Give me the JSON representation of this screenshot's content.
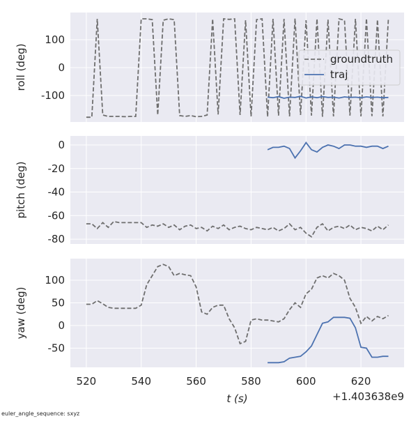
{
  "chart_data": [
    {
      "type": "line",
      "ylabel": "roll (deg)",
      "legend": "upper right",
      "xlim": [
        514.2,
        635.7
      ],
      "xticks": [
        520,
        540,
        560,
        580,
        600,
        620
      ],
      "ylim": [
        -195,
        197.5
      ],
      "yticks": [
        -100,
        0,
        100
      ],
      "grid": true,
      "series": [
        {
          "name": "groundtruth",
          "color": "#6e6e6e",
          "dashed": true,
          "x": [
            520,
            522,
            524,
            526,
            528,
            530,
            532,
            534,
            536,
            538,
            540,
            542,
            544,
            546,
            548,
            550,
            552,
            554,
            556,
            558,
            560,
            562,
            564,
            566,
            568,
            570,
            572,
            574,
            576,
            578,
            580,
            582,
            584,
            586,
            588,
            590,
            592,
            594,
            596,
            598,
            600,
            602,
            604,
            606,
            608,
            610,
            612,
            614,
            616,
            618,
            620,
            622,
            624,
            626,
            628,
            630
          ],
          "values": [
            -178,
            -178,
            175,
            -170,
            -175,
            -175,
            -175,
            -176,
            -175,
            -175,
            175,
            175,
            172,
            -170,
            170,
            175,
            172,
            -172,
            -175,
            -172,
            -176,
            -175,
            -170,
            175,
            -168,
            175,
            173,
            175,
            -170,
            170,
            -175,
            172,
            175,
            -176,
            175,
            -172,
            175,
            -175,
            176,
            -170,
            170,
            -172,
            175,
            -176,
            172,
            -175,
            175,
            170,
            -172,
            175,
            -175,
            176,
            -174,
            172,
            -175,
            175
          ]
        },
        {
          "name": "traj",
          "color": "#4c72b0",
          "dashed": false,
          "x": [
            586,
            588,
            590,
            592,
            594,
            596,
            598,
            600,
            602,
            604,
            606,
            608,
            610,
            612,
            614,
            616,
            618,
            620,
            622,
            624,
            626,
            628,
            630
          ],
          "values": [
            -106,
            -108,
            -104,
            -110,
            -106,
            -107,
            -103,
            -109,
            -105,
            -108,
            -104,
            -107,
            -106,
            -109,
            -105,
            -107,
            -106,
            -108,
            -105,
            -107,
            -106,
            -108,
            -107
          ]
        }
      ]
    },
    {
      "type": "line",
      "ylabel": "pitch (deg)",
      "xlim": [
        514.2,
        635.7
      ],
      "xticks": [
        520,
        540,
        560,
        580,
        600,
        620
      ],
      "ylim": [
        -84.1,
        7.7
      ],
      "yticks": [
        -80,
        -60,
        -40,
        -20,
        0
      ],
      "grid": true,
      "series": [
        {
          "color": "#6e6e6e",
          "dashed": true,
          "x": [
            520,
            522,
            524,
            526,
            528,
            530,
            532,
            534,
            536,
            538,
            540,
            542,
            544,
            546,
            548,
            550,
            552,
            554,
            556,
            558,
            560,
            562,
            564,
            566,
            568,
            570,
            572,
            574,
            576,
            578,
            580,
            582,
            584,
            586,
            588,
            590,
            592,
            594,
            596,
            598,
            600,
            602,
            604,
            606,
            608,
            610,
            612,
            614,
            616,
            618,
            620,
            622,
            624,
            626,
            628,
            630
          ],
          "values": [
            -67,
            -67,
            -71,
            -66,
            -70,
            -65,
            -66,
            -66,
            -66,
            -66,
            -66,
            -70,
            -68,
            -69,
            -67,
            -70,
            -68,
            -72,
            -69,
            -68,
            -71,
            -70,
            -73,
            -69,
            -71,
            -68,
            -72,
            -70,
            -69,
            -71,
            -72,
            -70,
            -71,
            -72,
            -70,
            -73,
            -71,
            -67,
            -72,
            -70,
            -75,
            -78,
            -70,
            -67,
            -73,
            -70,
            -69,
            -71,
            -68,
            -72,
            -70,
            -71,
            -73,
            -69,
            -72,
            -68
          ]
        },
        {
          "color": "#4c72b0",
          "dashed": false,
          "x": [
            586,
            588,
            590,
            592,
            594,
            596,
            598,
            600,
            602,
            604,
            606,
            608,
            610,
            612,
            614,
            616,
            618,
            620,
            622,
            624,
            626,
            628,
            630
          ],
          "values": [
            -4,
            -2,
            -2,
            -1,
            -3,
            -11,
            -5,
            2,
            -4,
            -6,
            -2,
            0,
            -1,
            -3,
            0,
            0,
            -1,
            -1,
            -2,
            -1,
            -1,
            -3,
            -1
          ]
        }
      ]
    },
    {
      "type": "line",
      "ylabel": "yaw (deg)",
      "xlabel": "t (s)",
      "offset": "+1.403638e9",
      "xlim": [
        514.2,
        635.7
      ],
      "xticks": [
        520,
        540,
        560,
        580,
        600,
        620
      ],
      "ylim": [
        -92.3,
        147.7
      ],
      "yticks": [
        -50,
        0,
        50,
        100
      ],
      "grid": true,
      "series": [
        {
          "color": "#6e6e6e",
          "dashed": true,
          "x": [
            520,
            522,
            524,
            526,
            528,
            530,
            532,
            534,
            536,
            538,
            540,
            542,
            544,
            546,
            548,
            550,
            552,
            554,
            556,
            558,
            560,
            562,
            564,
            566,
            568,
            570,
            572,
            574,
            576,
            578,
            580,
            582,
            584,
            586,
            588,
            590,
            592,
            594,
            596,
            598,
            600,
            602,
            604,
            606,
            608,
            610,
            612,
            614,
            616,
            618,
            620,
            622,
            624,
            626,
            628,
            630
          ],
          "values": [
            47,
            47,
            55,
            48,
            40,
            38,
            38,
            38,
            38,
            38,
            45,
            90,
            110,
            130,
            135,
            130,
            110,
            115,
            112,
            110,
            85,
            30,
            25,
            40,
            45,
            45,
            15,
            -5,
            -40,
            -35,
            12,
            15,
            12,
            12,
            10,
            8,
            15,
            35,
            50,
            40,
            70,
            80,
            105,
            110,
            105,
            115,
            110,
            100,
            60,
            40,
            5,
            20,
            10,
            20,
            15,
            22
          ]
        },
        {
          "color": "#4c72b0",
          "dashed": false,
          "x": [
            586,
            588,
            590,
            592,
            594,
            596,
            598,
            600,
            602,
            604,
            606,
            608,
            610,
            612,
            614,
            616,
            618,
            620,
            622,
            624,
            626,
            628,
            630
          ],
          "values": [
            -82,
            -82,
            -82,
            -80,
            -72,
            -70,
            -68,
            -58,
            -45,
            -20,
            5,
            8,
            18,
            18,
            18,
            16,
            -5,
            -48,
            -50,
            -70,
            -70,
            -68,
            -68
          ]
        }
      ]
    }
  ],
  "footer": "euler_angle_sequence: sxyz"
}
